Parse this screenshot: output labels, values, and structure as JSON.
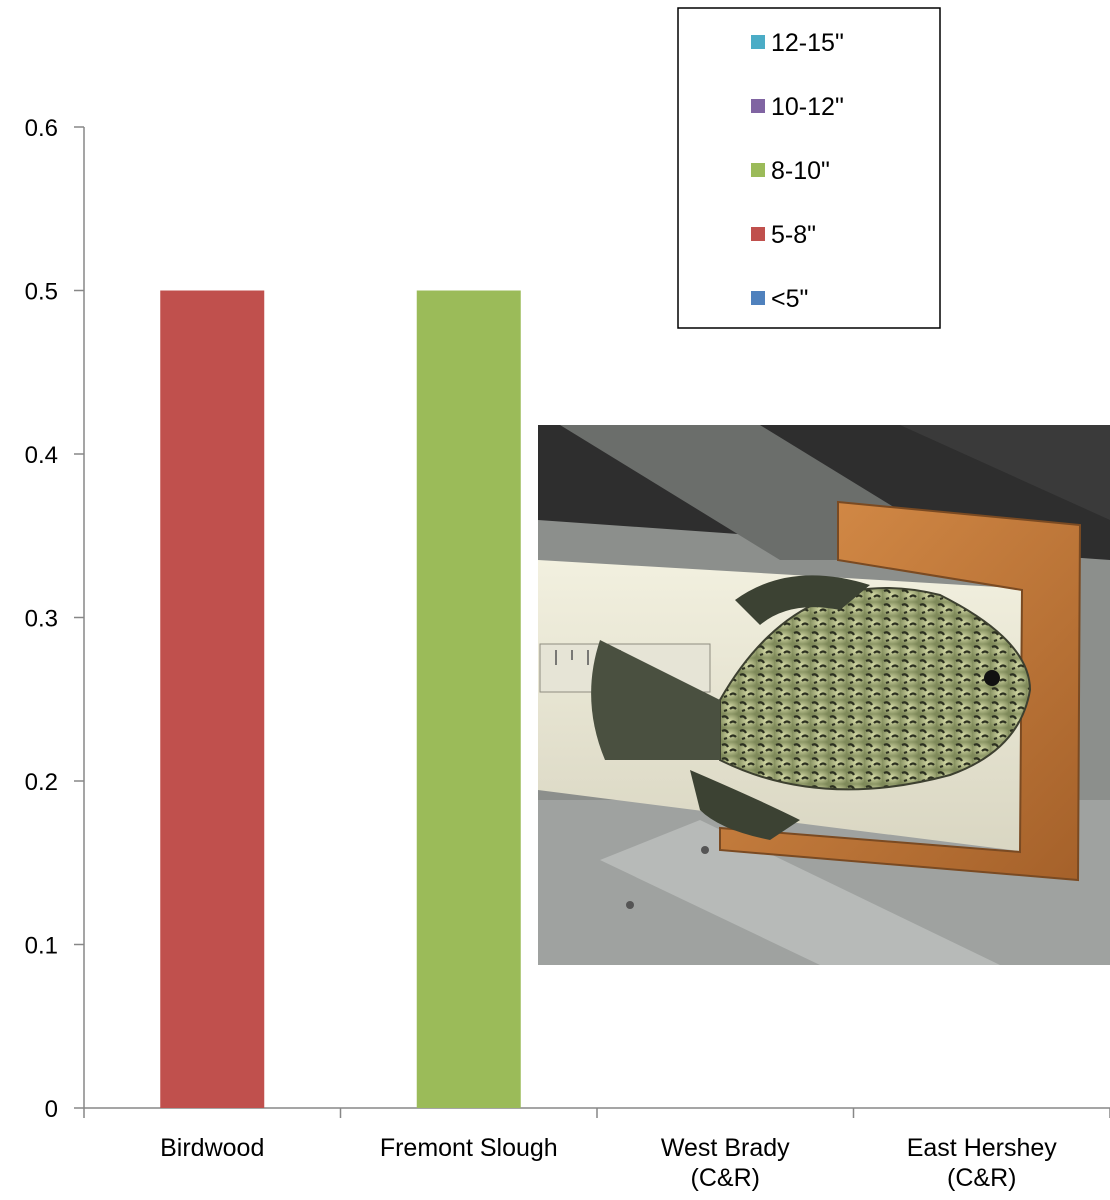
{
  "chart_data": {
    "type": "bar",
    "stacked": true,
    "title": "",
    "xlabel": "",
    "ylabel": "",
    "ylim": [
      0,
      0.6
    ],
    "yticks": [
      0,
      0.1,
      0.2,
      0.3,
      0.4,
      0.5,
      0.6
    ],
    "grid": false,
    "legend_position": "top-right",
    "categories": [
      [
        "Birdwood"
      ],
      [
        "Fremont Slough"
      ],
      [
        "West Brady",
        "(C&R)"
      ],
      [
        "East Hershey",
        "(C&R)"
      ]
    ],
    "series": [
      {
        "name": "<5\"",
        "color": "#4f81bd",
        "values": [
          0,
          0,
          0,
          0
        ]
      },
      {
        "name": "5-8\"",
        "color": "#c0504d",
        "values": [
          0.5,
          0,
          0,
          0
        ]
      },
      {
        "name": "8-10\"",
        "color": "#9bbb59",
        "values": [
          0,
          0.5,
          0,
          0
        ]
      },
      {
        "name": "10-12\"",
        "color": "#8064a2",
        "values": [
          0,
          0,
          0,
          0
        ]
      },
      {
        "name": "12-15\"",
        "color": "#4bacc6",
        "values": [
          0,
          0,
          0,
          0
        ]
      }
    ],
    "legend_order": [
      "12-15\"",
      "10-12\"",
      "8-10\"",
      "5-8\"",
      "<5\""
    ]
  },
  "photo": {
    "subject": "crappie-fish-on-measuring-board-icon"
  }
}
